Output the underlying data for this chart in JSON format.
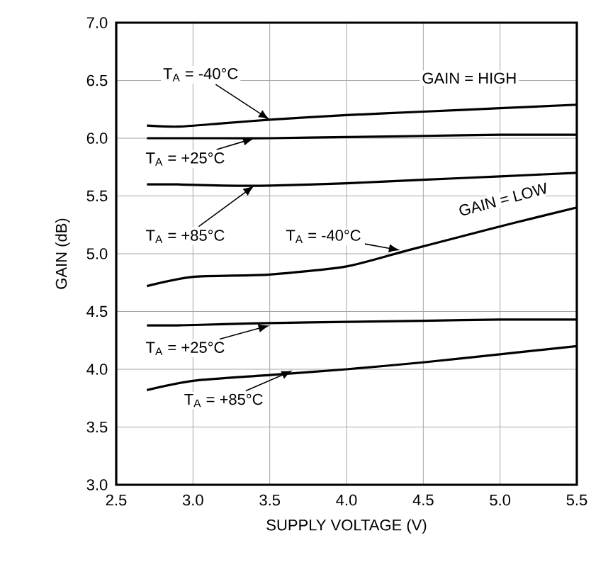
{
  "chart_data": {
    "type": "line",
    "xlabel": "SUPPLY VOLTAGE (V)",
    "ylabel": "GAIN (dB)",
    "xlim": [
      2.5,
      5.5
    ],
    "ylim": [
      3.0,
      7.0
    ],
    "xticks": [
      {
        "value": 2.5,
        "label": "2.5"
      },
      {
        "value": 3.0,
        "label": "3.0"
      },
      {
        "value": 3.5,
        "label": "3.5"
      },
      {
        "value": 4.0,
        "label": "4.0"
      },
      {
        "value": 4.5,
        "label": "4.5"
      },
      {
        "value": 5.0,
        "label": "5.0"
      },
      {
        "value": 5.5,
        "label": "5.5"
      }
    ],
    "yticks": [
      {
        "value": 3.0,
        "label": "3.0"
      },
      {
        "value": 3.5,
        "label": "3.5"
      },
      {
        "value": 4.0,
        "label": "4.0"
      },
      {
        "value": 4.5,
        "label": "4.5"
      },
      {
        "value": 5.0,
        "label": "5.0"
      },
      {
        "value": 5.5,
        "label": "5.5"
      },
      {
        "value": 6.0,
        "label": "6.0"
      },
      {
        "value": 6.5,
        "label": "6.5"
      },
      {
        "value": 7.0,
        "label": "7.0"
      }
    ],
    "grid": true,
    "x": [
      2.7,
      2.9,
      3.2,
      3.5,
      4.0,
      4.5,
      5.0,
      5.5
    ],
    "series": [
      {
        "color": "#000000",
        "values": [
          6.11,
          6.1,
          6.13,
          6.16,
          6.2,
          6.23,
          6.26,
          6.29
        ]
      },
      {
        "color": "#000000",
        "values": [
          6.0,
          6.0,
          6.0,
          6.0,
          6.01,
          6.02,
          6.03,
          6.03
        ]
      },
      {
        "color": "#000000",
        "values": [
          5.6,
          5.6,
          5.59,
          5.59,
          5.61,
          5.64,
          5.67,
          5.7
        ]
      },
      {
        "color": "#000000",
        "x": [
          2.7,
          3.0,
          3.5,
          4.0,
          4.4,
          4.75,
          5.1,
          5.5
        ],
        "values": [
          4.72,
          4.8,
          4.82,
          4.89,
          5.03,
          5.15,
          5.27,
          5.4
        ]
      },
      {
        "color": "#000000",
        "values": [
          4.38,
          4.38,
          4.39,
          4.4,
          4.41,
          4.42,
          4.43,
          4.43
        ]
      },
      {
        "color": "#000000",
        "x": [
          2.7,
          3.0,
          3.5,
          4.0,
          4.5,
          5.0,
          5.5
        ],
        "values": [
          3.82,
          3.9,
          3.95,
          4.0,
          4.06,
          4.13,
          4.2
        ]
      }
    ],
    "annotations": [
      {
        "text": "T$_{A}$ = -40°C",
        "x": 3.5,
        "y": 6.16
      },
      {
        "text": "T$_{A}$ = +25°C",
        "x": 3.4,
        "y": 6.0
      },
      {
        "text": "T$_{A}$ = +85°C",
        "x": 3.4,
        "y": 5.59
      },
      {
        "text": "T$_{A}$ = -40°C",
        "x": 4.35,
        "y": 5.03
      },
      {
        "text": "T$_{A}$ = +25°C",
        "x": 3.5,
        "y": 4.38
      },
      {
        "text": "T$_{A}$ = +85°C",
        "x": 3.65,
        "y": 3.99
      },
      "GAIN = HIGH",
      "GAIN = LOW"
    ]
  }
}
